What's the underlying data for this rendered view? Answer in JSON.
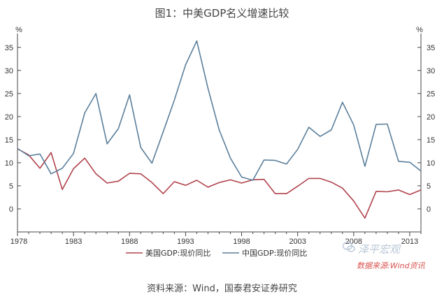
{
  "title": "图1：中美GDP名义增速比较",
  "source_note": "资料来源：Wind，国泰君安证券研究",
  "watermark_text": "泽平宏观",
  "wind_note": "数据来源:Wind资讯",
  "chart_data": {
    "type": "line",
    "y_unit_label": "%",
    "ylim": [
      -5,
      38
    ],
    "y_ticks": [
      0,
      5,
      10,
      15,
      20,
      25,
      30,
      35
    ],
    "x_ticks": [
      1978,
      1983,
      1988,
      1993,
      1998,
      2003,
      2008,
      2013
    ],
    "xlim": [
      1978,
      2014
    ],
    "grid": false,
    "legend_position": "bottom",
    "x": [
      1978,
      1979,
      1980,
      1981,
      1982,
      1983,
      1984,
      1985,
      1986,
      1987,
      1988,
      1989,
      1990,
      1991,
      1992,
      1993,
      1994,
      1995,
      1996,
      1997,
      1998,
      1999,
      2000,
      2001,
      2002,
      2003,
      2004,
      2005,
      2006,
      2007,
      2008,
      2009,
      2010,
      2011,
      2012,
      2013,
      2014
    ],
    "series": [
      {
        "name": "美国GDP:现价同比",
        "color": "#b0434d",
        "values": [
          13.0,
          11.7,
          8.8,
          12.2,
          4.2,
          8.7,
          11.0,
          7.6,
          5.6,
          6.0,
          7.7,
          7.6,
          5.7,
          3.3,
          5.9,
          5.1,
          6.2,
          4.7,
          5.7,
          6.3,
          5.6,
          6.3,
          6.4,
          3.3,
          3.3,
          4.9,
          6.6,
          6.6,
          5.8,
          4.5,
          1.7,
          -2.0,
          3.8,
          3.7,
          4.1,
          3.1,
          4.1
        ]
      },
      {
        "name": "中国GDP:现价同比",
        "color": "#5b7f9b",
        "values": [
          13.1,
          11.5,
          11.9,
          7.6,
          8.8,
          12.0,
          20.8,
          25.0,
          14.1,
          17.4,
          24.7,
          13.3,
          9.9,
          16.7,
          23.6,
          31.2,
          36.4,
          26.1,
          17.1,
          11.0,
          6.9,
          6.2,
          10.6,
          10.5,
          9.7,
          12.9,
          17.7,
          15.7,
          17.1,
          23.1,
          18.2,
          9.2,
          18.3,
          18.4,
          10.3,
          10.1,
          8.2
        ]
      }
    ]
  }
}
